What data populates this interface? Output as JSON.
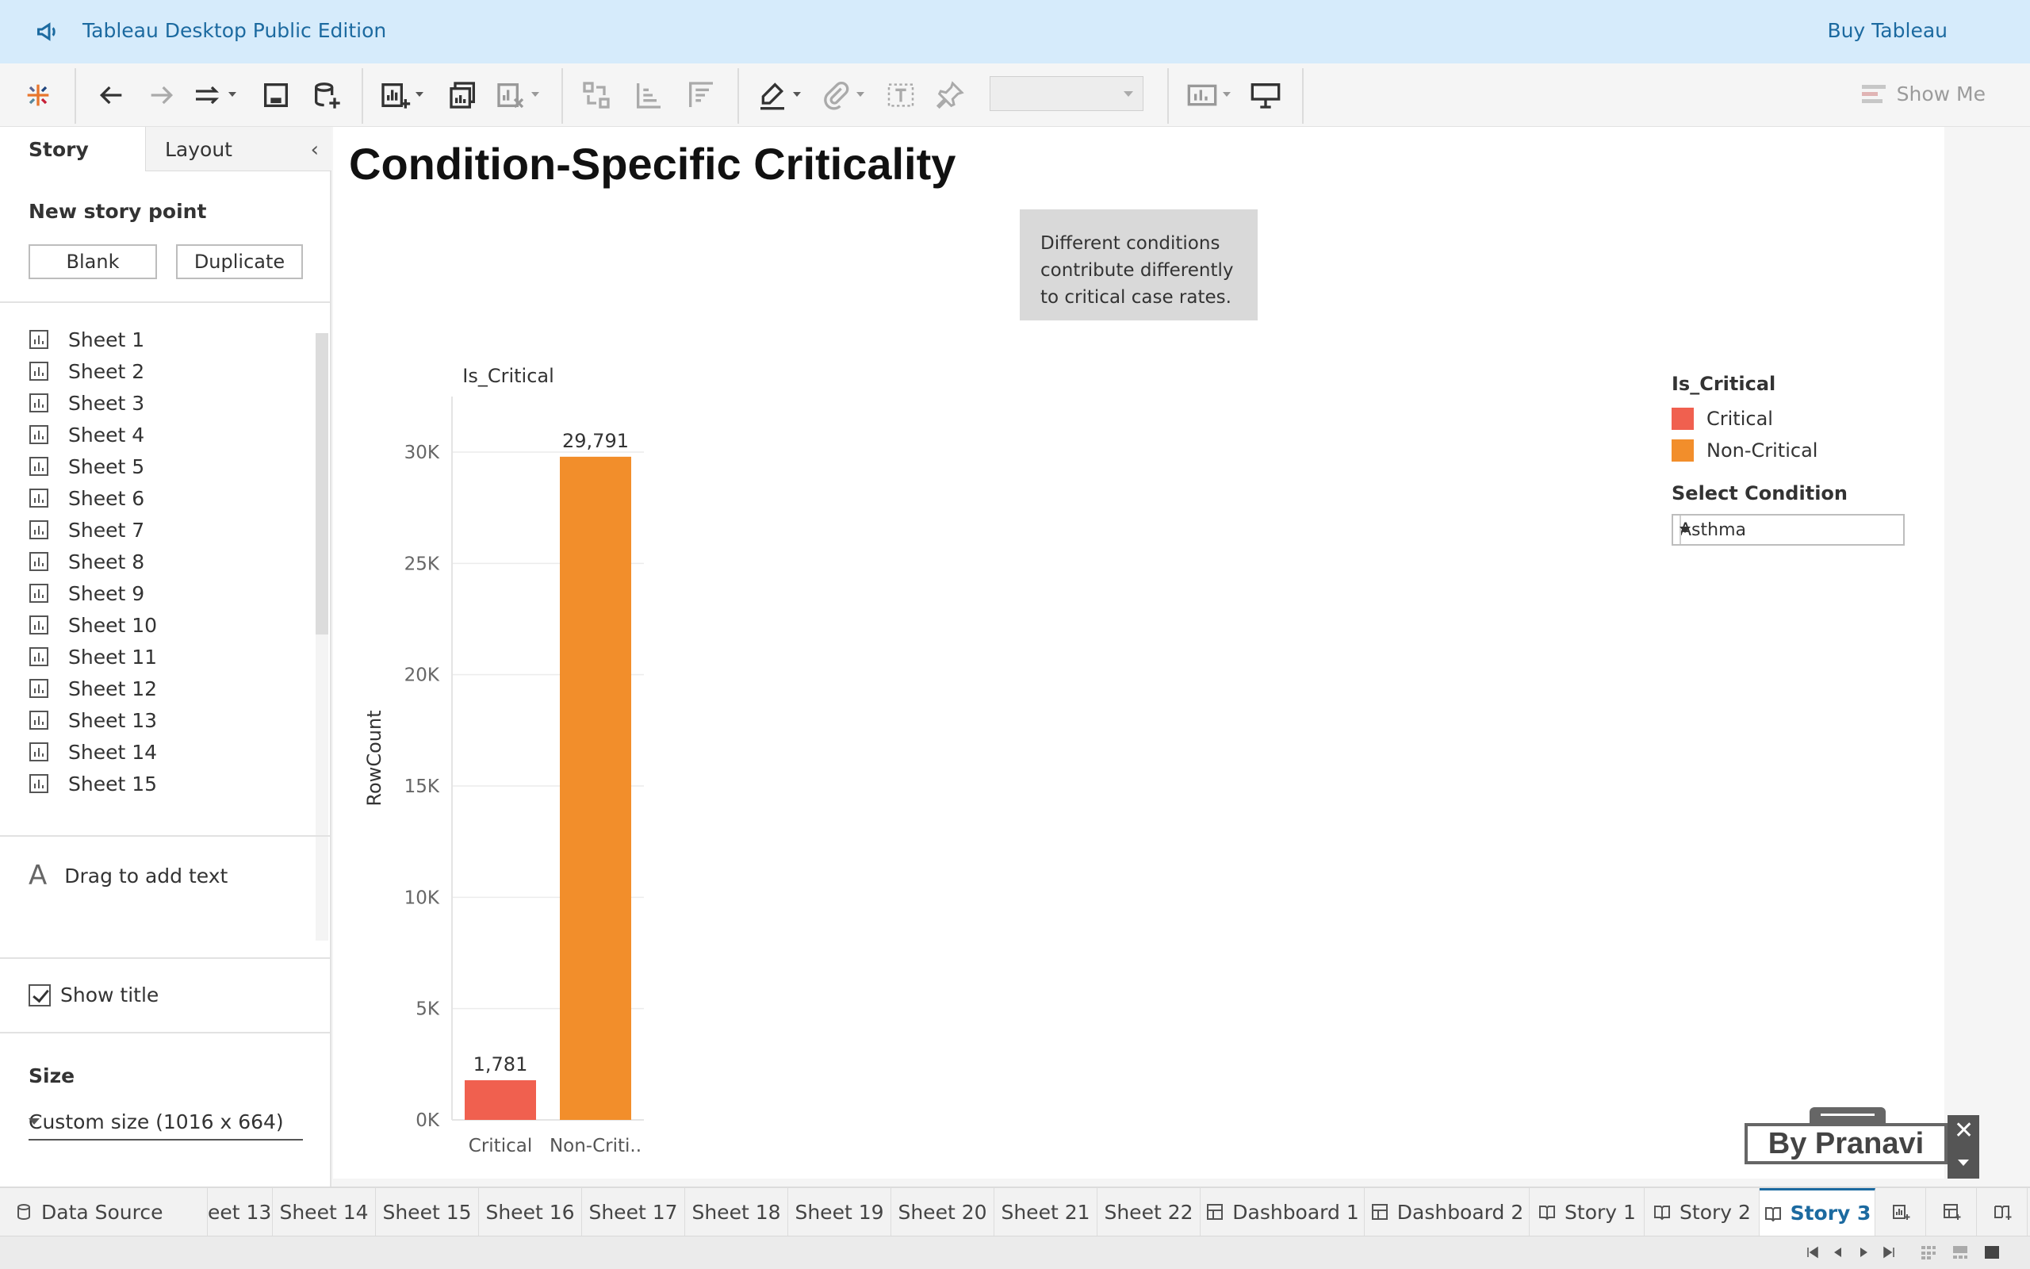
{
  "banner": {
    "edition": "Tableau Desktop Public Edition",
    "buy": "Buy Tableau"
  },
  "toolbar": {
    "show_me": "Show Me",
    "icons": [
      "tableau-logo",
      "undo",
      "redo",
      "replay",
      "save",
      "new-data-source",
      "new-worksheet",
      "duplicate-sheet",
      "clear-sheet",
      "swap-rows-columns",
      "sort-ascending",
      "sort-descending",
      "highlight",
      "group-members",
      "show-mark-labels",
      "fix-axes",
      "fit-dropdown",
      "show-cards",
      "presentation-mode"
    ]
  },
  "left_panel": {
    "tabs": [
      "Story",
      "Layout"
    ],
    "new_story_point": "New story point",
    "blank": "Blank",
    "duplicate": "Duplicate",
    "sheets": [
      "Sheet 1",
      "Sheet 2",
      "Sheet 3",
      "Sheet 4",
      "Sheet 5",
      "Sheet 6",
      "Sheet 7",
      "Sheet 8",
      "Sheet 9",
      "Sheet 10",
      "Sheet 11",
      "Sheet 12",
      "Sheet 13",
      "Sheet 14",
      "Sheet 15"
    ],
    "drag_to_add_text": "Drag to add text",
    "show_title": "Show title",
    "size_heading": "Size",
    "size_value": "Custom size (1016 x 664)"
  },
  "story": {
    "title": "Condition-Specific Criticality",
    "caption": "Different conditions contribute differently to critical case rates."
  },
  "chart_data": {
    "type": "bar",
    "title": "",
    "column_header": "Is_Critical",
    "categories": [
      "Critical",
      "Non-Criti.."
    ],
    "values": [
      1781,
      29791
    ],
    "value_labels": [
      "1,781",
      "29,791"
    ],
    "colors": [
      "#f0604f",
      "#f28e2b"
    ],
    "ylabel": "RowCount",
    "ylim": [
      0,
      30000
    ],
    "yticks": [
      0,
      5000,
      10000,
      15000,
      20000,
      25000,
      30000
    ],
    "ytick_labels": [
      "0K",
      "5K",
      "10K",
      "15K",
      "20K",
      "25K",
      "30K"
    ],
    "grid": true
  },
  "legend": {
    "title": "Is_Critical",
    "items": [
      {
        "label": "Critical",
        "color": "#f0604f"
      },
      {
        "label": "Non-Critical",
        "color": "#f28e2b"
      }
    ]
  },
  "filter": {
    "title": "Select Condition",
    "value": "Asthma"
  },
  "watermark": "By Pranavi",
  "bottom_tabs": {
    "data_source": "Data Source",
    "tabs": [
      {
        "label": "eet 13",
        "kind": "sheet"
      },
      {
        "label": "Sheet 14",
        "kind": "sheet"
      },
      {
        "label": "Sheet 15",
        "kind": "sheet"
      },
      {
        "label": "Sheet 16",
        "kind": "sheet"
      },
      {
        "label": "Sheet 17",
        "kind": "sheet"
      },
      {
        "label": "Sheet 18",
        "kind": "sheet"
      },
      {
        "label": "Sheet 19",
        "kind": "sheet"
      },
      {
        "label": "Sheet 20",
        "kind": "sheet"
      },
      {
        "label": "Sheet 21",
        "kind": "sheet"
      },
      {
        "label": "Sheet 22",
        "kind": "sheet"
      },
      {
        "label": "Dashboard 1",
        "kind": "dashboard"
      },
      {
        "label": "Dashboard 2",
        "kind": "dashboard"
      },
      {
        "label": "Story 1",
        "kind": "story"
      },
      {
        "label": "Story 2",
        "kind": "story"
      },
      {
        "label": "Story 3",
        "kind": "story",
        "active": true
      }
    ]
  }
}
